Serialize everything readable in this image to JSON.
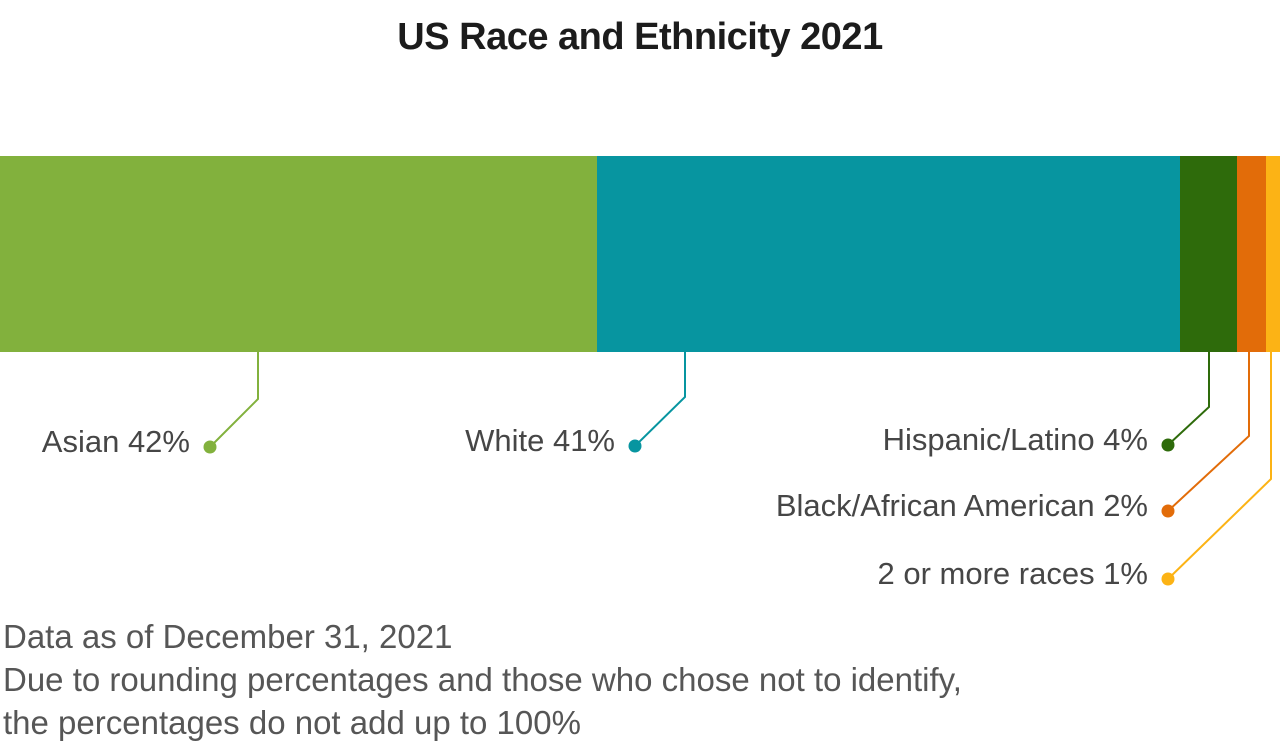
{
  "chart_data": {
    "type": "bar",
    "variant": "horizontal-stacked-single-bar",
    "title": "US Race and Ethnicity 2021",
    "unit": "%",
    "axis": "none",
    "grid": false,
    "legend_position": "callout-labels-below-bar",
    "categories": [
      "Asian",
      "White",
      "Hispanic/Latino",
      "Black/African American",
      "2 or more races"
    ],
    "values": [
      42,
      41,
      4,
      2,
      1
    ],
    "series": [
      {
        "name": "Asian",
        "value": 42,
        "color": "#82B13D",
        "label": "Asian 42%"
      },
      {
        "name": "White",
        "value": 41,
        "color": "#0795A0",
        "label": "White 41%"
      },
      {
        "name": "Hispanic/Latino",
        "value": 4,
        "color": "#2E6B0B",
        "label": "Hispanic/Latino 4%"
      },
      {
        "name": "Black/African American",
        "value": 2,
        "color": "#E26C09",
        "label": "Black/African American 2%"
      },
      {
        "name": "2 or more races",
        "value": 1,
        "color": "#FCB315",
        "label": "2 or more races 1%"
      }
    ]
  },
  "footnote": {
    "lines": [
      "Data as of December 31, 2021",
      "Due to rounding percentages and those who chose not to identify,",
      "the percentages do not add up to 100%"
    ]
  },
  "colors": {
    "background": "#FFFFFF",
    "title_text": "#1C1C1C",
    "callout_text": "#464646",
    "footnote_text": "#565656"
  }
}
